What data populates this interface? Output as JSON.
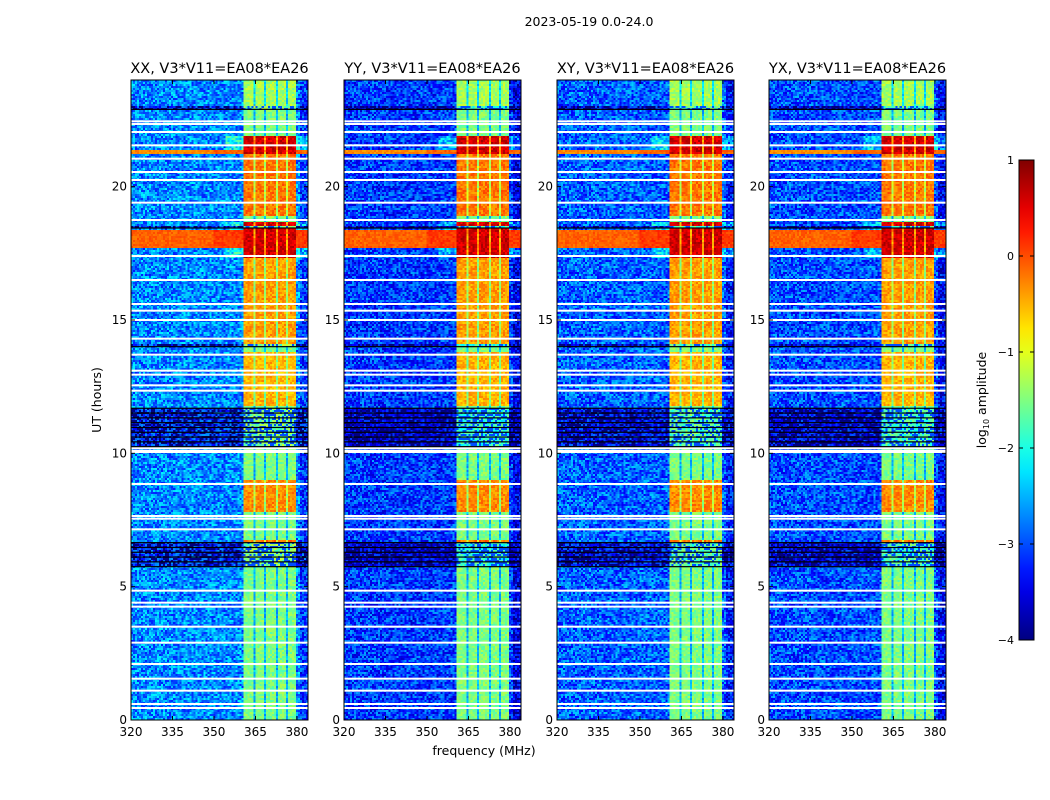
{
  "chart_data": {
    "type": "heatmap",
    "suptitle": "2023-05-19 0.0-24.0",
    "xlabel": "frequency (MHz)",
    "ylabel": "UT (hours)",
    "xlim": [
      320,
      384
    ],
    "ylim": [
      0,
      24
    ],
    "xticks": [
      320,
      335,
      350,
      365,
      380
    ],
    "yticks": [
      0,
      5,
      10,
      15,
      20
    ],
    "panels": [
      {
        "title": "XX, V3*V11=EA08*EA26",
        "pol": "XX",
        "base": -2.7,
        "narrow_rfi": 0.9
      },
      {
        "title": "YY, V3*V11=EA08*EA26",
        "pol": "YY",
        "base": -3.1,
        "narrow_rfi": 0.5
      },
      {
        "title": "XY, V3*V11=EA08*EA26",
        "pol": "XY",
        "base": -2.9,
        "narrow_rfi": 0.5
      },
      {
        "title": "YX, V3*V11=EA08*EA26",
        "pol": "YX",
        "base": -3.0,
        "narrow_rfi": 0.5
      }
    ],
    "strong_band_mhz": [
      360.5,
      379.5
    ],
    "channel_gaps_mhz": [
      364.5,
      368.5,
      372.5,
      376.5
    ],
    "flagged_rows_ut": [
      0.45,
      0.6,
      1.1,
      1.55,
      2.1,
      2.9,
      3.5,
      4.25,
      4.4,
      4.85,
      7.15,
      7.55,
      7.65,
      8.85,
      10.05,
      10.1,
      10.2,
      12.35,
      12.55,
      12.95,
      13.1,
      13.7,
      14.3,
      15.0,
      15.35,
      15.6,
      16.5,
      17.4,
      18.75,
      19.4,
      20.25,
      20.55,
      21.05,
      21.55,
      22.05,
      22.35,
      22.45
    ],
    "dark_bands_ut": [
      [
        5.75,
        6.7
      ],
      [
        10.25,
        11.7
      ],
      [
        14.0,
        14.1
      ],
      [
        18.45,
        18.55
      ],
      [
        22.9,
        23.0
      ]
    ],
    "broadband_rfi_ut": [
      [
        17.7,
        18.4,
        0.2
      ],
      [
        21.2,
        21.4,
        0.0
      ]
    ],
    "strong_periods_ut": [
      [
        6.6,
        6.75,
        -0.2
      ],
      [
        7.8,
        9.0,
        -0.3
      ],
      [
        11.8,
        13.8,
        -0.5
      ],
      [
        14.1,
        17.3,
        -0.4
      ],
      [
        17.3,
        18.7,
        0.6
      ],
      [
        18.9,
        21.2,
        -0.2
      ],
      [
        21.2,
        21.9,
        0.6
      ],
      [
        22.9,
        24.0,
        -1.3
      ]
    ],
    "colorbar": {
      "label": "log10 amplitude",
      "label_main": "log",
      "label_sub": "10",
      "label_rest": " amplitude",
      "range": [
        -4,
        1
      ],
      "ticks": [
        1,
        0,
        -1,
        -2,
        -3,
        -4
      ],
      "tick_labels": [
        "1",
        "0",
        "−1",
        "−2",
        "−3",
        "−4"
      ],
      "colormap": "jet"
    }
  }
}
